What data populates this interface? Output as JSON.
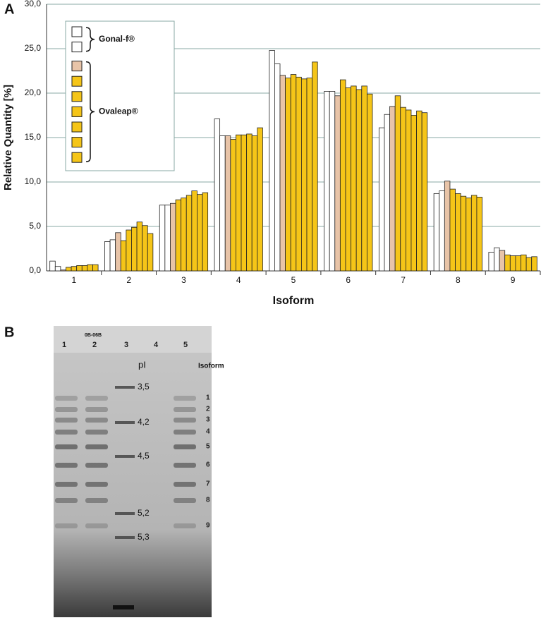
{
  "chart_data": {
    "type": "bar",
    "panel_label": "A",
    "ylabel": "Relative Quantity [%]",
    "xlabel": "Isoform",
    "categories": [
      "1",
      "2",
      "3",
      "4",
      "5",
      "6",
      "7",
      "8",
      "9"
    ],
    "ylim": [
      0,
      30
    ],
    "yticks": [
      {
        "value": 0,
        "label": "0,0"
      },
      {
        "value": 5,
        "label": "5,0"
      },
      {
        "value": 10,
        "label": "10,0"
      },
      {
        "value": 15,
        "label": "15,0"
      },
      {
        "value": 20,
        "label": "20,0"
      },
      {
        "value": 25,
        "label": "25,0"
      },
      {
        "value": 30,
        "label": "30,0"
      }
    ],
    "grid": true,
    "series": [
      {
        "color": "#ffffff",
        "values": [
          1.1,
          3.3,
          7.4,
          17.1,
          24.8,
          20.2,
          16.1,
          8.7,
          2.1
        ]
      },
      {
        "color": "#ffffff",
        "values": [
          0.5,
          3.5,
          7.4,
          15.2,
          23.3,
          20.2,
          17.6,
          9.0,
          2.6
        ]
      },
      {
        "color": "#e8c4a8",
        "values": [
          0.1,
          4.3,
          7.6,
          15.2,
          22.0,
          19.7,
          18.5,
          10.1,
          2.3
        ]
      },
      {
        "color": "#f5c518",
        "values": [
          0.4,
          3.4,
          8.0,
          14.8,
          21.7,
          21.5,
          19.7,
          9.2,
          1.8
        ]
      },
      {
        "color": "#f5c518",
        "values": [
          0.5,
          4.6,
          8.2,
          15.3,
          22.1,
          20.6,
          18.4,
          8.7,
          1.7
        ]
      },
      {
        "color": "#f5c518",
        "values": [
          0.6,
          4.9,
          8.5,
          15.3,
          21.8,
          20.8,
          18.1,
          8.4,
          1.7
        ]
      },
      {
        "color": "#f5c518",
        "values": [
          0.6,
          5.5,
          9.0,
          15.4,
          21.6,
          20.4,
          17.5,
          8.2,
          1.8
        ]
      },
      {
        "color": "#f5c518",
        "values": [
          0.7,
          5.1,
          8.6,
          15.2,
          21.7,
          20.8,
          18.0,
          8.5,
          1.5
        ]
      },
      {
        "color": "#f5c518",
        "values": [
          0.7,
          4.2,
          8.8,
          16.1,
          23.5,
          19.9,
          17.8,
          8.3,
          1.6
        ]
      }
    ],
    "legend": [
      {
        "label": "Gonal-f®",
        "series": [
          0,
          1
        ]
      },
      {
        "label": "Ovaleap®",
        "series": [
          2,
          3,
          4,
          5,
          6,
          7,
          8
        ]
      }
    ]
  },
  "gel": {
    "panel_label": "B",
    "lanes": [
      "1",
      "2",
      "3",
      "4",
      "5"
    ],
    "sample_code": "0B-06B",
    "pi_label": "pI",
    "pi_markers": [
      "3,5",
      "4,2",
      "4,5",
      "5,2",
      "5,3"
    ],
    "isoform_label": "Isoform",
    "isoforms": [
      "1",
      "2",
      "3",
      "4",
      "5",
      "6",
      "7",
      "8",
      "9"
    ]
  }
}
